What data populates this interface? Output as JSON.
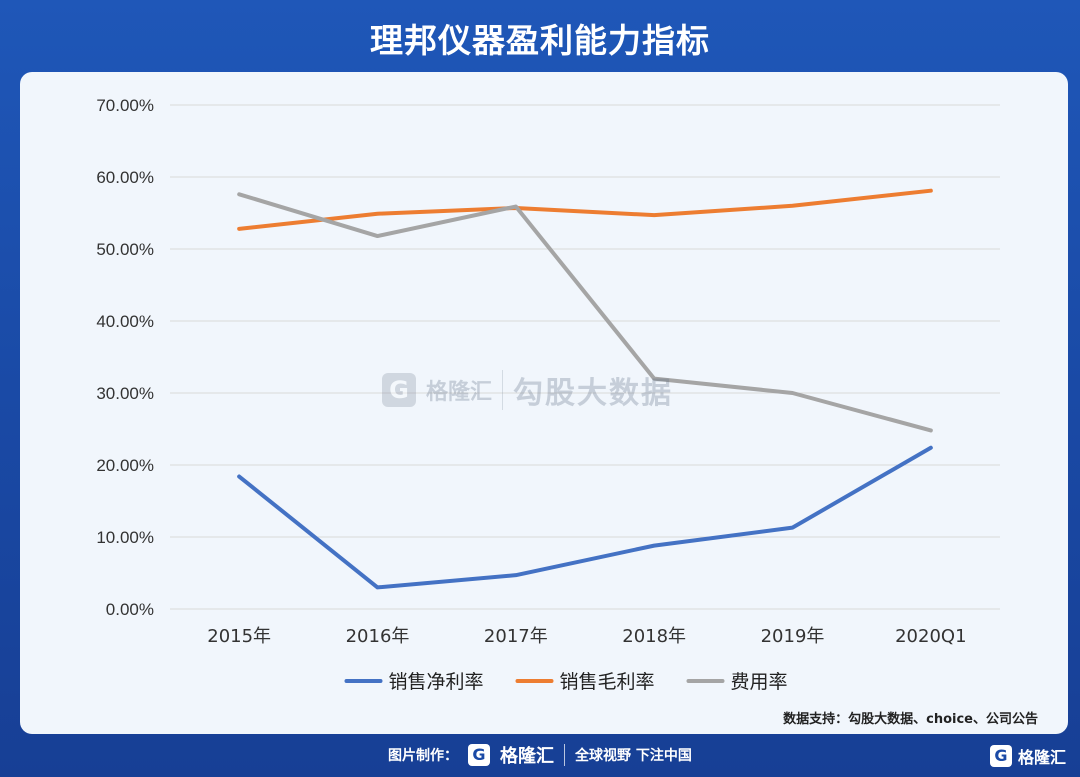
{
  "header": {
    "title": "理邦仪器盈利能力指标"
  },
  "source_note": "数据支持：勾股大数据、choice、公司公告",
  "watermark": {
    "logo": "G",
    "brand": "格隆汇",
    "text": "勾股大数据"
  },
  "footer": {
    "label": "图片制作：",
    "logo": "G",
    "brand": "格隆汇",
    "slogan": "全球视野 下注中国",
    "corner_brand": "格隆汇"
  },
  "colors": {
    "background": "#1a4aa6",
    "panel": "#f1f6fc",
    "grid": "#d9d9d9"
  },
  "chart_data": {
    "type": "line",
    "title": "",
    "xlabel": "",
    "ylabel": "",
    "categories": [
      "2015年",
      "2016年",
      "2017年",
      "2018年",
      "2019年",
      "2020Q1"
    ],
    "ylim": [
      0,
      70
    ],
    "y_ticks": [
      "0.00%",
      "10.00%",
      "20.00%",
      "30.00%",
      "40.00%",
      "50.00%",
      "60.00%",
      "70.00%"
    ],
    "grid": true,
    "legend_position": "bottom",
    "series": [
      {
        "name": "销售净利率",
        "color": "#4472c4",
        "values": [
          18.4,
          3.0,
          4.7,
          8.8,
          11.3,
          22.4
        ]
      },
      {
        "name": "销售毛利率",
        "color": "#ed7d31",
        "values": [
          52.8,
          54.9,
          55.7,
          54.7,
          56.0,
          58.1
        ]
      },
      {
        "name": "费用率",
        "color": "#a5a5a5",
        "values": [
          57.6,
          51.8,
          55.9,
          32.0,
          30.0,
          24.8
        ]
      }
    ]
  }
}
